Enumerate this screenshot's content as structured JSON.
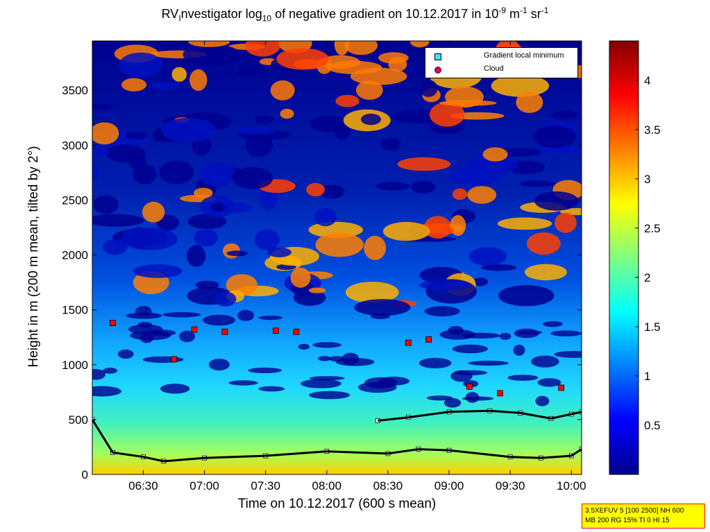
{
  "title": {
    "part1": "RV",
    "sub1": "I",
    "part2": "nvestigator log",
    "sub2": "10",
    "part3": " of negative gradient on 10.12.2017 in 10",
    "sup1": "-9",
    "part4": " m",
    "sup2": "-1",
    "part5": " sr",
    "sup3": "-1"
  },
  "legend": {
    "minimum_label": "Gradient local minimum",
    "cloud_label": "Cloud"
  },
  "info_box": {
    "line1": "3.5XEFUV 5 [100 2500] NH 600",
    "line2": "MB 200 RG 15% TI 0 HI 15"
  },
  "colors": {
    "low": "#00008f",
    "mid": "#7fff7f",
    "high": "#800000",
    "minimum_marker": "#40e0ff",
    "cloud_marker": "#ff0000"
  },
  "chart_data": {
    "type": "heatmap",
    "title": "RVInvestigator log10 of negative gradient on 10.12.2017 in 10^-9 m^-1 sr^-1",
    "xlabel": "Time on 10.12.2017 (600 s mean)",
    "ylabel": "Height in m (200 m mean, tilted by 2°)",
    "xlim": [
      "06:05",
      "10:05"
    ],
    "x_ticks": [
      "06:30",
      "07:00",
      "07:30",
      "08:00",
      "08:30",
      "09:00",
      "09:30",
      "10:00"
    ],
    "ylim": [
      0,
      3950
    ],
    "y_ticks": [
      "0",
      "500",
      "1000",
      "1500",
      "2000",
      "2500",
      "3000",
      "3500"
    ],
    "colorbar": {
      "range": [
        0,
        4.4
      ],
      "ticks": [
        "0.5",
        "1",
        "1.5",
        "2",
        "2.5",
        "3",
        "3.5",
        "4"
      ],
      "colormap": "jet"
    },
    "legend_position": "top-right",
    "series": [
      {
        "name": "Gradient local minimum",
        "x": [
          "06:05",
          "06:15",
          "06:30",
          "06:40",
          "07:00",
          "07:30",
          "08:00",
          "08:30",
          "08:45",
          "09:00",
          "09:30",
          "09:45",
          "10:00",
          "10:05"
        ],
        "y": [
          500,
          200,
          160,
          120,
          150,
          170,
          210,
          190,
          230,
          220,
          160,
          150,
          170,
          230
        ]
      },
      {
        "name": "Gradient local minimum",
        "x": [
          "08:25",
          "08:40",
          "09:00",
          "09:20",
          "09:35",
          "09:50",
          "10:00",
          "10:05"
        ],
        "y": [
          490,
          520,
          570,
          580,
          560,
          510,
          550,
          570
        ]
      },
      {
        "name": "Cloud",
        "x": [
          "06:15",
          "06:45",
          "06:55",
          "07:10",
          "07:35",
          "07:45",
          "08:40",
          "08:50",
          "09:10",
          "09:25",
          "09:55"
        ],
        "y": [
          1380,
          1050,
          1320,
          1300,
          1310,
          1300,
          1200,
          1230,
          800,
          740,
          790
        ]
      }
    ]
  }
}
